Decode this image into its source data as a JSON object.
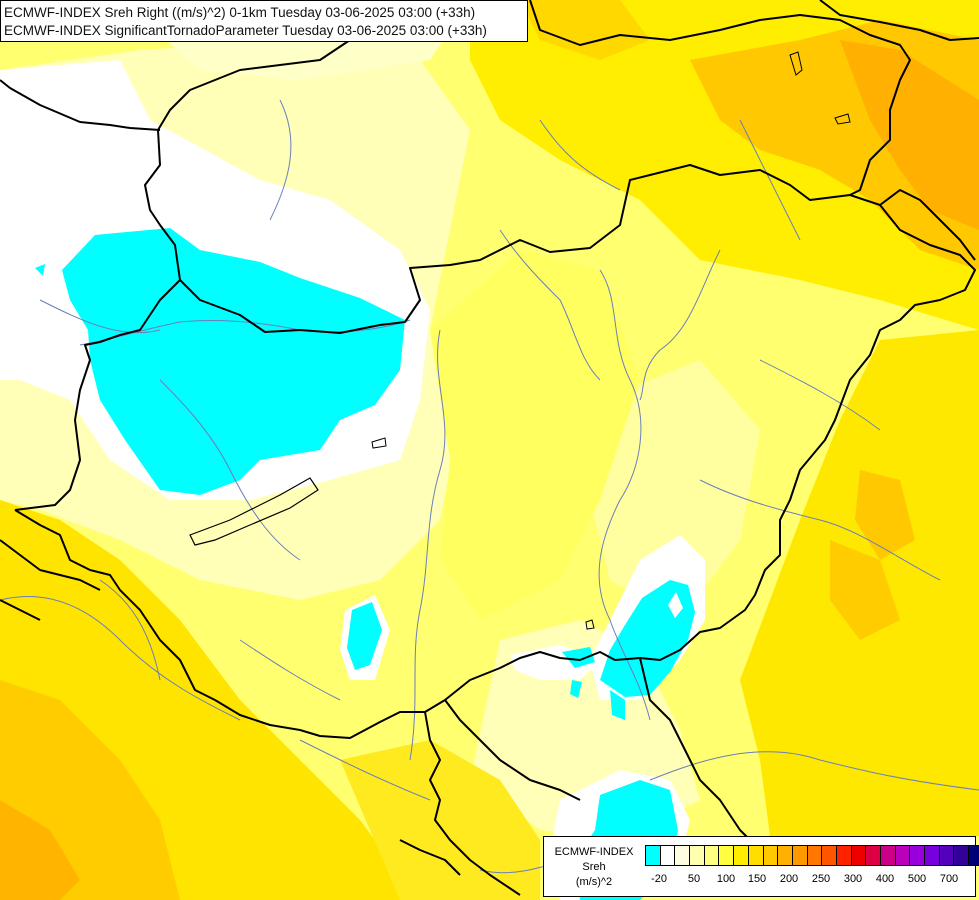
{
  "header": {
    "line1": "ECMWF-INDEX Sreh Right ((m/s)^2) 0-1km Tuesday 03-06-2025 03:00 (+33h)",
    "line2": "ECMWF-INDEX SignificantTornadoParameter Tuesday 03-06-2025 03:00 (+33h)"
  },
  "legend": {
    "line1": "ECMWF-INDEX",
    "line2": "Sreh",
    "line3": "(m/s)^2",
    "swatch_colors": [
      "#00ffff",
      "#ffffff",
      "#fffde0",
      "#ffffb0",
      "#ffff80",
      "#ffff40",
      "#ffee00",
      "#ffdd00",
      "#ffc800",
      "#ffb000",
      "#ff9900",
      "#ff7700",
      "#ff5500",
      "#ff2200",
      "#ee0000",
      "#dd0044",
      "#cc0088",
      "#bb00bb",
      "#9900dd",
      "#7700dd",
      "#5500bb",
      "#330099",
      "#000077"
    ],
    "ticks": [
      "-20",
      "50",
      "100",
      "150",
      "200",
      "250",
      "300",
      "400",
      "500",
      "700"
    ]
  },
  "colors": {
    "cyan": "#00ffff",
    "white": "#ffffff",
    "pale_yellow": "#ffffc0",
    "light_yellow": "#ffff80",
    "yellow": "#ffee00",
    "gold": "#ffd700",
    "orange": "#ffb400",
    "border": "#000000",
    "river": "#6a7fb8"
  }
}
